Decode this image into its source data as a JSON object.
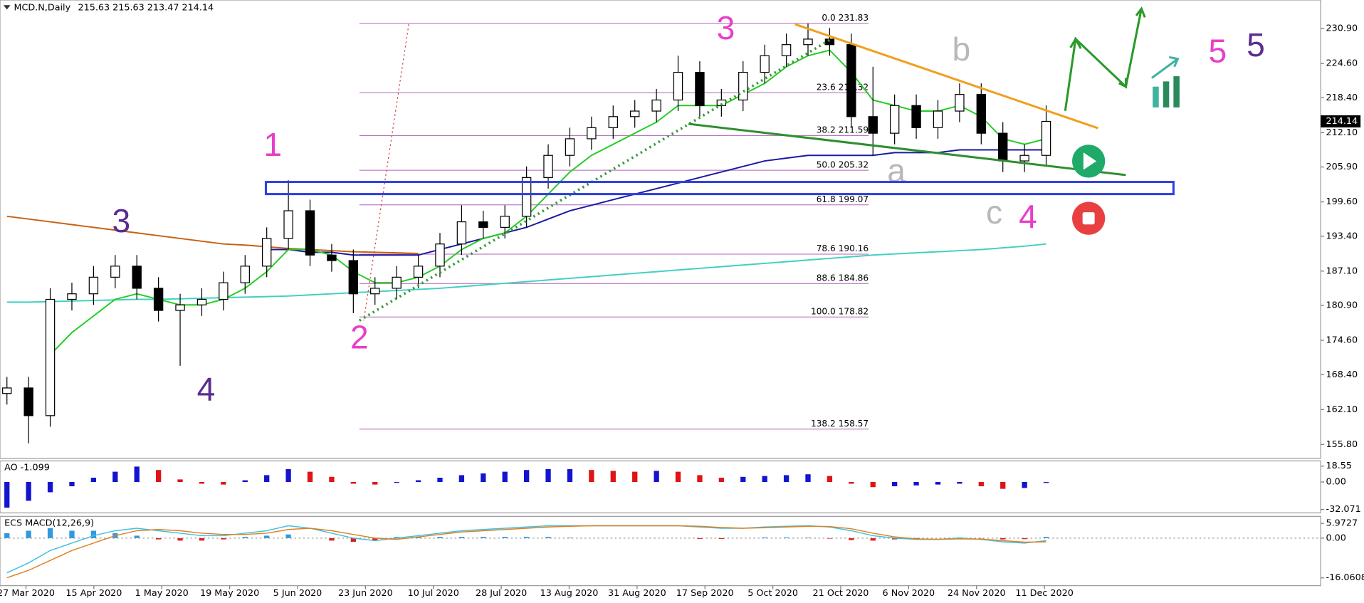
{
  "header": {
    "symbol": "MCD.N,Daily",
    "ohlc": [
      215.63,
      215.63,
      213.47,
      214.14
    ]
  },
  "chart_data": [
    {
      "type": "candlestick",
      "open": [
        165,
        166,
        161,
        182,
        183,
        186,
        188,
        184,
        180,
        181,
        182,
        185,
        188,
        193,
        198,
        190,
        189,
        183,
        184,
        186,
        188,
        192,
        196,
        195,
        197,
        204,
        208,
        211,
        213,
        215,
        216,
        218,
        223,
        217,
        218,
        223,
        226,
        228,
        229,
        228,
        215,
        212,
        217,
        213,
        216,
        219,
        212,
        207,
        208
      ],
      "high": [
        168,
        168,
        184,
        185,
        188,
        190,
        190,
        186,
        183,
        184,
        187,
        190,
        195,
        203.5,
        200,
        192,
        191,
        186,
        188,
        190,
        194,
        199,
        198,
        199,
        206,
        210,
        213,
        215,
        217,
        218,
        220,
        226,
        225,
        220,
        225,
        228,
        230,
        231.8,
        231,
        230,
        224,
        219,
        219,
        218,
        221,
        221,
        214,
        210,
        217
      ],
      "low": [
        163,
        156,
        159,
        180,
        181,
        184,
        182,
        178,
        170,
        179,
        180,
        183,
        186,
        191,
        188,
        187,
        179.5,
        181,
        182,
        184,
        186,
        190,
        193,
        193,
        195,
        202,
        206,
        209,
        211,
        213,
        214,
        216,
        215,
        215,
        216,
        221,
        224,
        226,
        226,
        213,
        208,
        210,
        211,
        211,
        214,
        210,
        205,
        205,
        206
      ],
      "close": [
        166,
        161,
        182,
        183,
        186,
        188,
        184,
        180,
        181,
        182,
        185,
        188,
        193,
        198,
        190,
        189,
        183,
        184,
        186,
        188,
        192,
        196,
        195,
        197,
        204,
        208,
        211,
        213,
        215,
        216,
        218,
        223,
        217,
        218,
        223,
        226,
        228,
        229,
        228,
        215,
        212,
        217,
        213,
        216,
        219,
        212,
        207,
        208,
        214.14
      ],
      "up_color": "#ffffff",
      "down_color": "#000000",
      "lines": [
        {
          "color": "#c86010",
          "values": [
            197,
            196.5,
            196,
            195.5,
            195,
            194.5,
            194,
            193.5,
            193,
            192.5,
            192,
            191.8,
            191.5,
            191.2,
            191,
            190.8,
            190.6,
            190.5,
            190.4,
            190.3,
            null,
            null,
            null,
            null,
            null,
            null,
            null,
            null,
            null,
            null,
            null,
            null,
            null,
            null,
            null,
            null,
            null,
            null,
            null,
            null,
            null,
            null,
            null,
            null,
            null,
            null,
            null,
            null,
            null
          ]
        },
        {
          "color": "#40d0c0",
          "values": [
            181.5,
            181.5,
            181.6,
            181.7,
            181.8,
            181.9,
            182,
            182,
            182.1,
            182.2,
            182.3,
            182.4,
            182.5,
            182.6,
            182.8,
            183,
            183.2,
            183.4,
            183.6,
            183.8,
            184,
            184.3,
            184.6,
            184.9,
            185.2,
            185.5,
            185.8,
            186.1,
            186.4,
            186.7,
            187,
            187.3,
            187.6,
            187.9,
            188.2,
            188.5,
            188.8,
            189.1,
            189.4,
            189.7,
            190,
            190.2,
            190.4,
            190.6,
            190.8,
            191,
            191.3,
            191.6,
            192
          ]
        },
        {
          "color": "#1a1aa0",
          "values": [
            null,
            null,
            null,
            null,
            null,
            null,
            null,
            null,
            null,
            null,
            null,
            null,
            191,
            191,
            190.5,
            190.5,
            190,
            190,
            190,
            190,
            191,
            192,
            193,
            194,
            195,
            196.5,
            198,
            199,
            200,
            201,
            202,
            203,
            204,
            205,
            206,
            207,
            207.5,
            208,
            208,
            208,
            208,
            208.5,
            208.5,
            208.5,
            209,
            209,
            209,
            209,
            209
          ]
        },
        {
          "color": "#22cc22",
          "values": [
            null,
            null,
            172,
            176,
            179,
            182,
            183,
            182,
            181,
            181,
            182,
            184,
            187,
            191,
            191,
            190,
            187,
            185,
            185,
            186,
            188,
            191,
            193,
            194,
            197,
            201,
            205,
            208,
            210,
            212,
            214,
            217,
            217,
            217,
            219,
            221,
            224,
            226,
            227,
            223,
            218,
            217,
            216,
            216,
            217,
            215,
            211,
            210,
            211
          ]
        }
      ],
      "ylim": [
        153.45,
        236.06
      ],
      "yticks": [
        {
          "value": 230.9,
          "label": "230.90"
        },
        {
          "value": 224.6,
          "label": "224.60"
        },
        {
          "value": 218.4,
          "label": "218.40"
        },
        {
          "value": 212.1,
          "label": "212.10"
        },
        {
          "value": 205.9,
          "label": "205.90"
        },
        {
          "value": 199.6,
          "label": "199.60"
        },
        {
          "value": 193.4,
          "label": "193.40"
        },
        {
          "value": 187.1,
          "label": "187.10"
        },
        {
          "value": 180.9,
          "label": "180.90"
        },
        {
          "value": 174.6,
          "label": "174.60"
        },
        {
          "value": 168.4,
          "label": "168.40"
        },
        {
          "value": 162.1,
          "label": "162.10"
        },
        {
          "value": 155.8,
          "label": "155.80"
        }
      ],
      "last_price": 214.14,
      "x_labels": [
        "27 Mar 2020",
        "15 Apr 2020",
        "1 May 2020",
        "19 May 2020",
        "5 Jun 2020",
        "23 Jun 2020",
        "10 Jul 2020",
        "28 Jul 2020",
        "13 Aug 2020",
        "31 Aug 2020",
        "17 Sep 2020",
        "5 Oct 2020",
        "21 Oct 2020",
        "6 Nov 2020",
        "24 Nov 2020",
        "11 Dec 2020"
      ],
      "fib_levels": [
        {
          "value": 231.83,
          "label": "0.0 231.83"
        },
        {
          "value": 219.32,
          "label": "23.6 219.32"
        },
        {
          "value": 211.59,
          "label": "38.2 211.59"
        },
        {
          "value": 205.32,
          "label": "50.0 205.32"
        },
        {
          "value": 199.07,
          "label": "61.8 199.07"
        },
        {
          "value": 190.16,
          "label": "78.6 190.16"
        },
        {
          "value": 184.86,
          "label": "88.6 184.86"
        },
        {
          "value": 178.82,
          "label": "100.0 178.82"
        },
        {
          "value": 158.57,
          "label": "138.2 158.57"
        }
      ],
      "fib_color": "#b060b8",
      "annotations": [
        {
          "text": "1",
          "color": "#e83fc8"
        },
        {
          "text": "3",
          "color": "#5b2c8f"
        },
        {
          "text": "4",
          "color": "#5b2c8f"
        },
        {
          "text": "2",
          "color": "#e83fc8"
        },
        {
          "text": "3",
          "color": "#e83fc8"
        },
        {
          "text": "b",
          "color": "#b8b8b8"
        },
        {
          "text": "a",
          "color": "#b8b8b8"
        },
        {
          "text": "c",
          "color": "#b8b8b8"
        },
        {
          "text": "4",
          "color": "#e83fc8"
        },
        {
          "text": "5",
          "color": "#e83fc8"
        },
        {
          "text": "5",
          "color": "#5b2c8f"
        }
      ]
    },
    {
      "type": "bar",
      "title": "AO -1.099",
      "values": [
        -30,
        -22,
        -12,
        -5,
        5,
        12,
        18,
        14,
        3,
        -2,
        -3,
        2,
        8,
        15,
        12,
        6,
        -2,
        -3,
        -1,
        2,
        5,
        8,
        10,
        12,
        14,
        15,
        15,
        14,
        13,
        12,
        13,
        12,
        8,
        5,
        6,
        7,
        8,
        9,
        7,
        -2,
        -6,
        -5,
        -4,
        -3,
        -2,
        -5,
        -8,
        -7,
        -1.099
      ],
      "up_color": "#1414d0",
      "down_color": "#e01414",
      "ylim": [
        -36.12,
        24.62
      ],
      "yticks": [
        18.55,
        {
          "value": 0,
          "label": "0.00"
        },
        -32.071
      ]
    },
    {
      "type": "macd",
      "title": "ECS MACD(12,26,9)",
      "values": [
        2,
        3,
        4,
        3,
        3,
        2,
        1,
        -0.5,
        -1,
        -1,
        -0.5,
        0.5,
        1,
        1.5,
        0,
        -1,
        -1.5,
        -1,
        0.5,
        0.5,
        0.5,
        0.5,
        0.5,
        0.5,
        0.5,
        0.5,
        0.2,
        0,
        0,
        0,
        0,
        0,
        -0.3,
        -0.3,
        0,
        0.3,
        0.3,
        0.2,
        -0.2,
        -0.8,
        -1,
        -0.5,
        -0.2,
        0,
        0.3,
        -0.1,
        -0.5,
        -0.4,
        0.5
      ],
      "pos_color": "#3399dd",
      "neg_color": "#dd2222",
      "series": [
        {
          "color": "#40c0e0",
          "values": [
            -14,
            -10,
            -5,
            -2,
            1,
            3,
            4,
            3,
            2,
            1,
            1,
            2,
            3,
            5,
            4,
            2,
            0,
            -1,
            0,
            1,
            2,
            3,
            3.5,
            4,
            4.5,
            5,
            5,
            5,
            5,
            5,
            5,
            5,
            4.5,
            4,
            4,
            4.5,
            4.8,
            5,
            4.5,
            3,
            1,
            0,
            -0.5,
            -0.5,
            0,
            -0.5,
            -1.5,
            -2,
            -1
          ]
        },
        {
          "color": "#e08020",
          "values": [
            -16,
            -13,
            -9,
            -5,
            -2,
            1,
            3,
            3.5,
            3,
            2,
            1.5,
            1.5,
            2,
            3.5,
            4,
            3,
            1.5,
            0,
            -0.5,
            0.5,
            1.5,
            2.5,
            3,
            3.5,
            4,
            4.5,
            4.8,
            5,
            5,
            5,
            5,
            5,
            4.8,
            4.3,
            4,
            4.2,
            4.5,
            4.8,
            4.7,
            3.8,
            2,
            0.5,
            -0.3,
            -0.5,
            -0.3,
            -0.4,
            -1,
            -1.6,
            -1.5
          ]
        }
      ],
      "ylim": [
        -19.2,
        8.8
      ],
      "yticks": [
        5.9727,
        {
          "value": 0,
          "label": "0.00"
        },
        -16.0608
      ]
    }
  ]
}
